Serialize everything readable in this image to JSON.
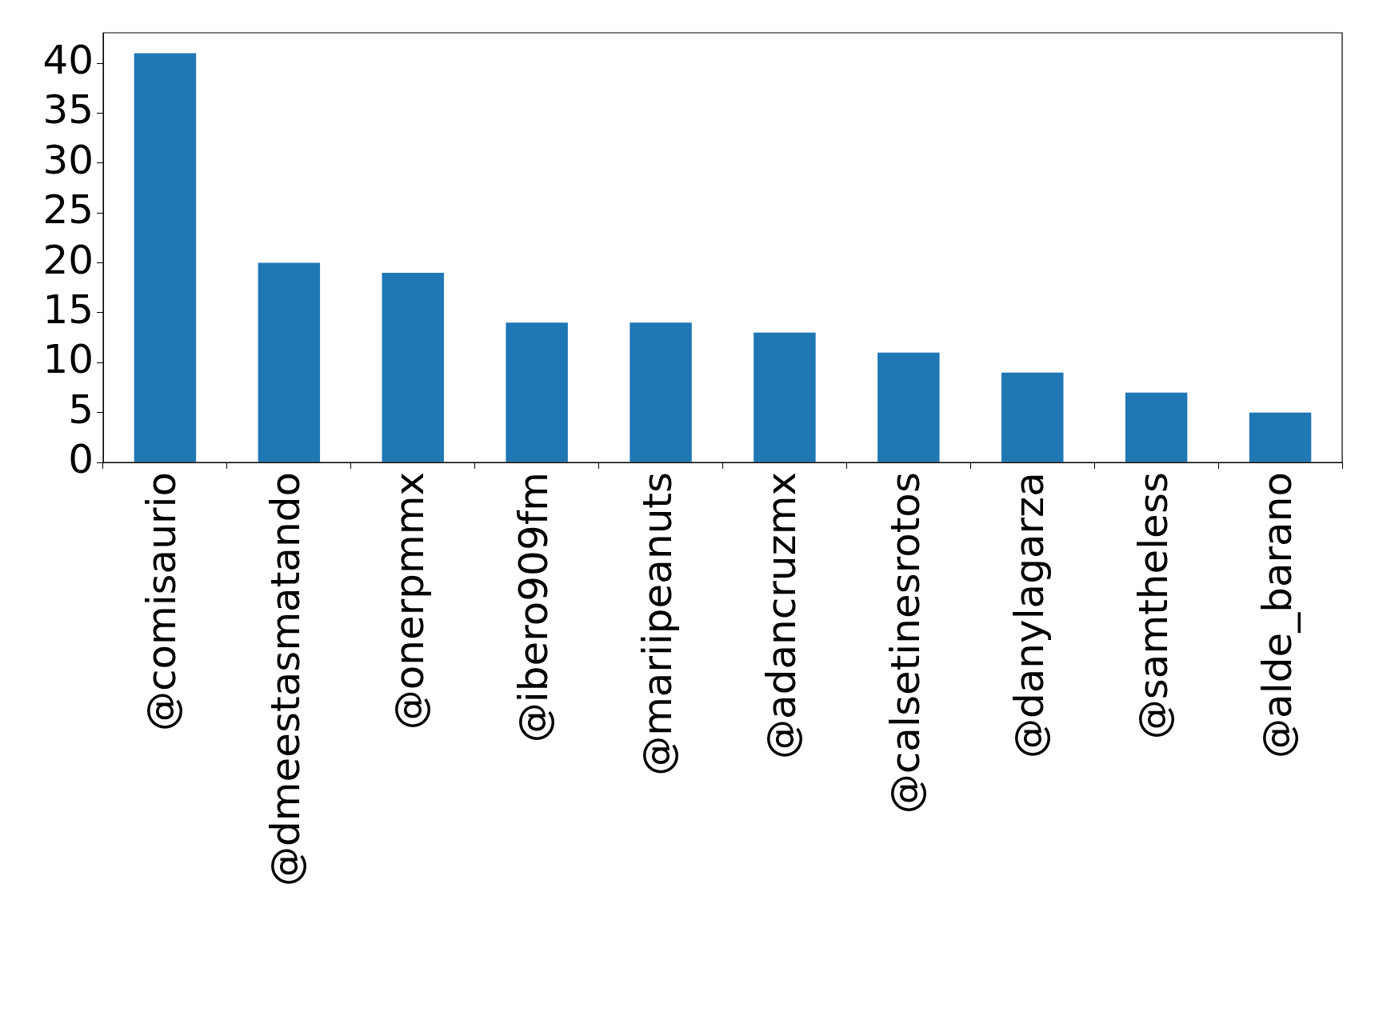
{
  "chart_data": {
    "type": "bar",
    "categories": [
      "@comisaurio",
      "@dmeestasmatando",
      "@onerpmmx",
      "@ibero909fm",
      "@mariipeanuts",
      "@adancruzmx",
      "@calsetinesrotos",
      "@danylagarza",
      "@samtheless",
      "@alde_barano"
    ],
    "values": [
      41,
      20,
      19,
      14,
      14,
      13,
      11,
      9,
      7,
      5
    ],
    "color": "#1f77b4",
    "ylim": [
      0,
      43.05
    ],
    "yticks": [
      0,
      5,
      10,
      15,
      20,
      25,
      30,
      35,
      40
    ],
    "grid": false
  }
}
